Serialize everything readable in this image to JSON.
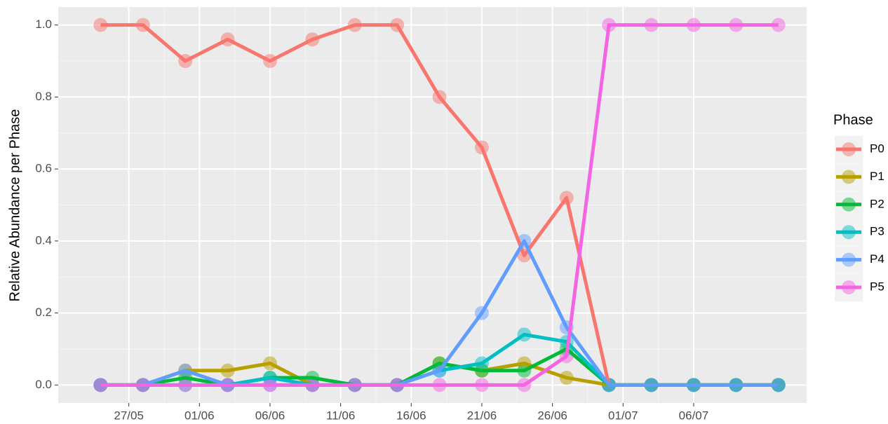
{
  "chart_data": {
    "type": "line",
    "y_label": "Relative Abundance per Phase",
    "legend_title": "Phase",
    "legend_position": "right",
    "grid": true,
    "x": [
      "25/05",
      "28/05",
      "31/05",
      "03/06",
      "06/06",
      "09/06",
      "12/06",
      "15/06",
      "18/06",
      "21/06",
      "24/06",
      "27/06",
      "30/06",
      "03/07",
      "06/07",
      "09/07",
      "12/07"
    ],
    "xlim": [
      "22/05",
      "14/07"
    ],
    "xticks": [
      "27/05",
      "01/06",
      "06/06",
      "11/06",
      "16/06",
      "21/06",
      "26/06",
      "01/07",
      "06/07"
    ],
    "ylim": [
      -0.05,
      1.05
    ],
    "yticks": [
      {
        "value": 0,
        "label": "0.0"
      },
      {
        "value": 0.2,
        "label": "0.2"
      },
      {
        "value": 0.4,
        "label": "0.4"
      },
      {
        "value": 0.6,
        "label": "0.6"
      },
      {
        "value": 0.8,
        "label": "0.8"
      },
      {
        "value": 1,
        "label": "1.0"
      }
    ],
    "series": [
      {
        "name": "P0",
        "color": "#F8766D",
        "values": [
          1,
          1,
          0.9,
          0.96,
          0.9,
          0.96,
          1,
          1,
          0.8,
          0.66,
          0.36,
          0.52,
          0,
          0,
          0,
          0,
          0
        ]
      },
      {
        "name": "P1",
        "color": "#B79F00",
        "values": [
          0,
          0,
          0.04,
          0.04,
          0.06,
          0,
          0,
          0,
          0.06,
          0.04,
          0.06,
          0.02,
          0,
          0,
          0,
          0,
          0
        ]
      },
      {
        "name": "P2",
        "color": "#00BA38",
        "values": [
          0,
          0,
          0.02,
          0,
          0.02,
          0.02,
          0,
          0,
          0.06,
          0.04,
          0.04,
          0.1,
          0,
          0,
          0,
          0,
          0
        ]
      },
      {
        "name": "P3",
        "color": "#00BFC4",
        "values": [
          0,
          0,
          0,
          0,
          0.02,
          0,
          0,
          0,
          0.04,
          0.06,
          0.14,
          0.12,
          0,
          0,
          0,
          0,
          0
        ]
      },
      {
        "name": "P4",
        "color": "#619CFF",
        "values": [
          0,
          0,
          0.04,
          0,
          0,
          0,
          0,
          0,
          0.04,
          0.2,
          0.4,
          0.16,
          0,
          0,
          0,
          0,
          0
        ]
      },
      {
        "name": "P5",
        "color": "#F564E3",
        "values": [
          0,
          0,
          0,
          0,
          0,
          0,
          0,
          0,
          0,
          0,
          0,
          0.08,
          1,
          1,
          1,
          1,
          1
        ]
      }
    ]
  }
}
